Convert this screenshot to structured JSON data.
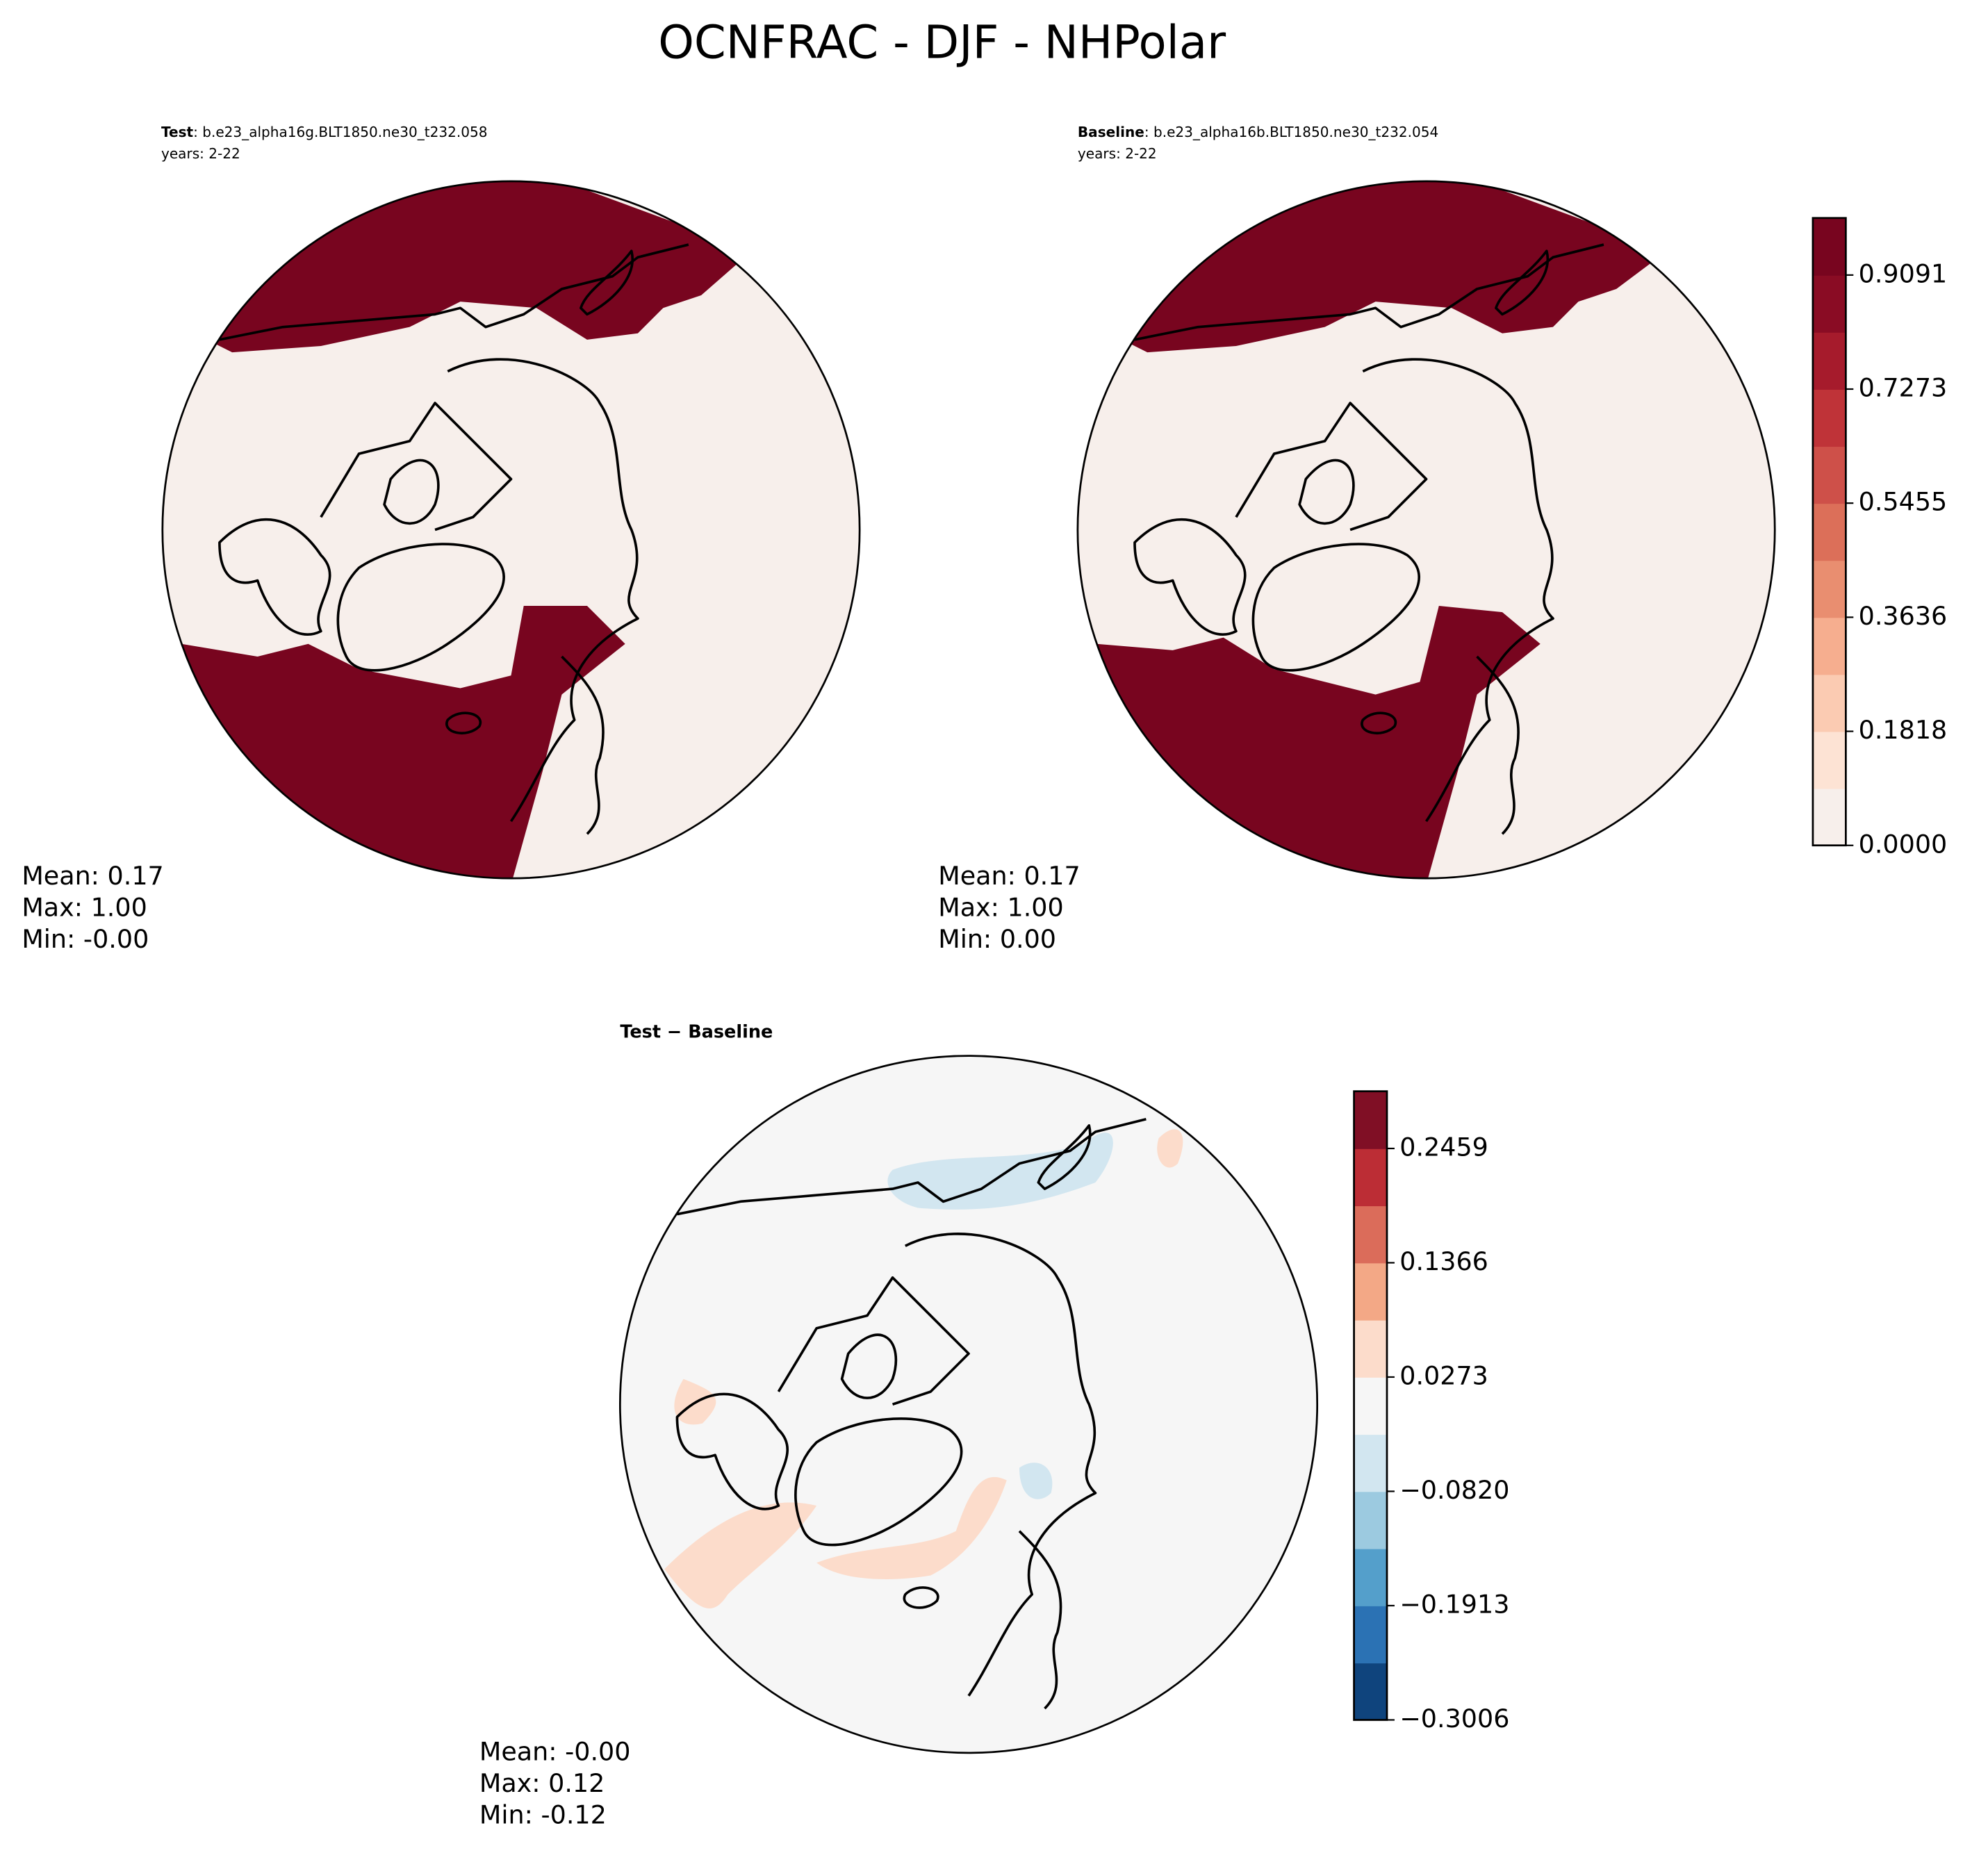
{
  "title": "OCNFRAC - DJF - NHPolar",
  "panels": [
    {
      "label": "Test",
      "case": ": b.e23_alpha16g.BLT1850.ne30_t232.058",
      "years": "years: 2-22",
      "stats": [
        "Mean:  0.17",
        "Max:  1.00",
        "Min: -0.00"
      ]
    },
    {
      "label": "Baseline",
      "case": ": b.e23_alpha16b.BLT1850.ne30_t232.054",
      "years": "years: 2-22",
      "stats": [
        "Mean:  0.17",
        "Max:  1.00",
        "Min:  0.00"
      ]
    },
    {
      "label": "Test − Baseline",
      "stats": [
        "Mean: -0.00",
        "Max:  0.12",
        "Min: -0.12"
      ]
    }
  ],
  "colorbars": [
    {
      "lim": [
        0,
        1
      ],
      "ticks": [
        {
          "value": 0,
          "label": "0.0000"
        },
        0.1818,
        0.3636,
        0.5455,
        0.7273,
        0.9091
      ],
      "colors": [
        "#f7efeb",
        "#fde3d4",
        "#fbcbb2",
        "#f6ae8f",
        "#e98e70",
        "#dc6f59",
        "#ce5049",
        "#bf3338",
        "#a61b2c",
        "#8a0c24",
        "#78051f"
      ]
    },
    {
      "lim": [
        -0.3006,
        0.3006
      ],
      "ticks": [
        {
          "value": -0.3006,
          "label": "−0.3006"
        },
        {
          "value": -0.1913,
          "label": "−0.1913"
        },
        {
          "value": -0.082,
          "label": "−0.0820"
        },
        0.0273,
        0.1366,
        0.2459
      ],
      "colors": [
        "#0f447d",
        "#2b72b4",
        "#549fcb",
        "#9ccae0",
        "#d2e6f0",
        "#f6f6f6",
        "#fcdccb",
        "#f3a886",
        "#db6c5a",
        "#bc2d35",
        "#800f25"
      ]
    }
  ]
}
